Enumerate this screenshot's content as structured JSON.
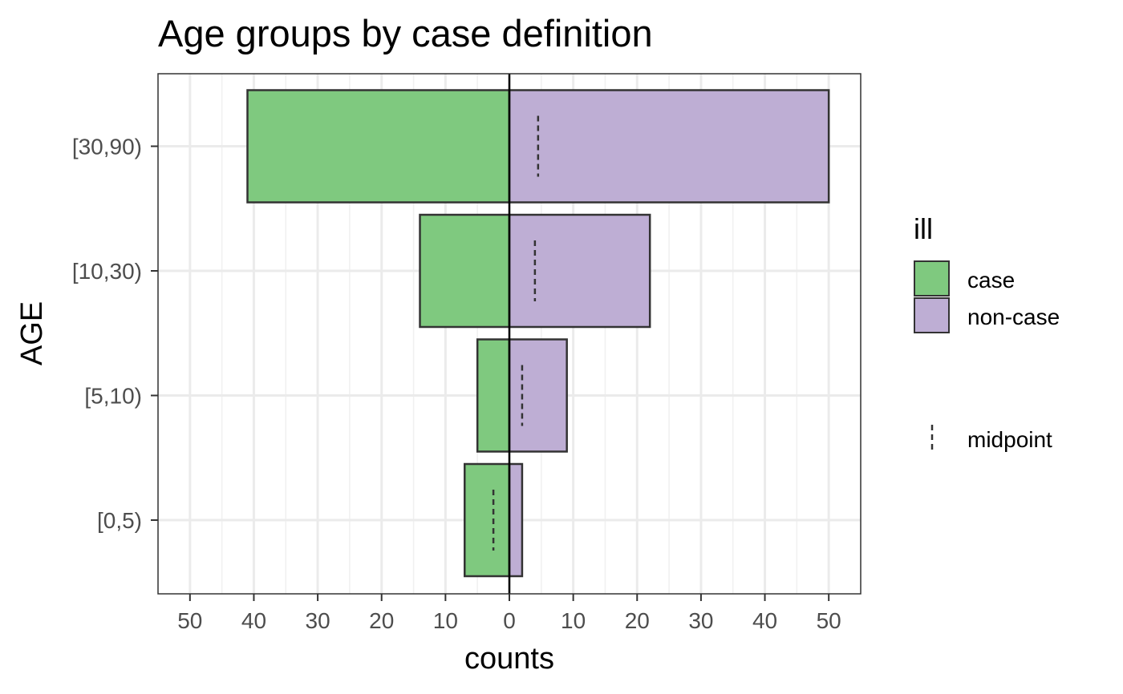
{
  "chart_data": {
    "type": "bar",
    "orientation": "horizontal",
    "style": "population-pyramid",
    "title": "Age groups by case definition",
    "xlabel": "counts",
    "ylabel": "AGE",
    "categories": [
      "[0,5)",
      "[5,10)",
      "[10,30)",
      "[30,90)"
    ],
    "series": [
      {
        "name": "case",
        "direction": "left",
        "color": "#7fc97f",
        "values": [
          7,
          5,
          14,
          41
        ]
      },
      {
        "name": "non-case",
        "direction": "right",
        "color": "#beaed4",
        "values": [
          2,
          9,
          22,
          50
        ]
      }
    ],
    "midpoint": {
      "name": "midpoint",
      "style": "dashed",
      "values": [
        -2.5,
        2,
        4,
        4.5
      ]
    },
    "xlim": [
      -55,
      55
    ],
    "x_ticks": [
      -50,
      -40,
      -30,
      -20,
      -10,
      0,
      10,
      20,
      30,
      40,
      50
    ],
    "x_tick_labels": [
      "50",
      "40",
      "30",
      "20",
      "10",
      "0",
      "10",
      "20",
      "30",
      "40",
      "50"
    ],
    "grid": true,
    "legend": {
      "title": "ill",
      "position": "right",
      "entries": [
        "case",
        "non-case"
      ],
      "midpoint_label": "midpoint"
    }
  }
}
